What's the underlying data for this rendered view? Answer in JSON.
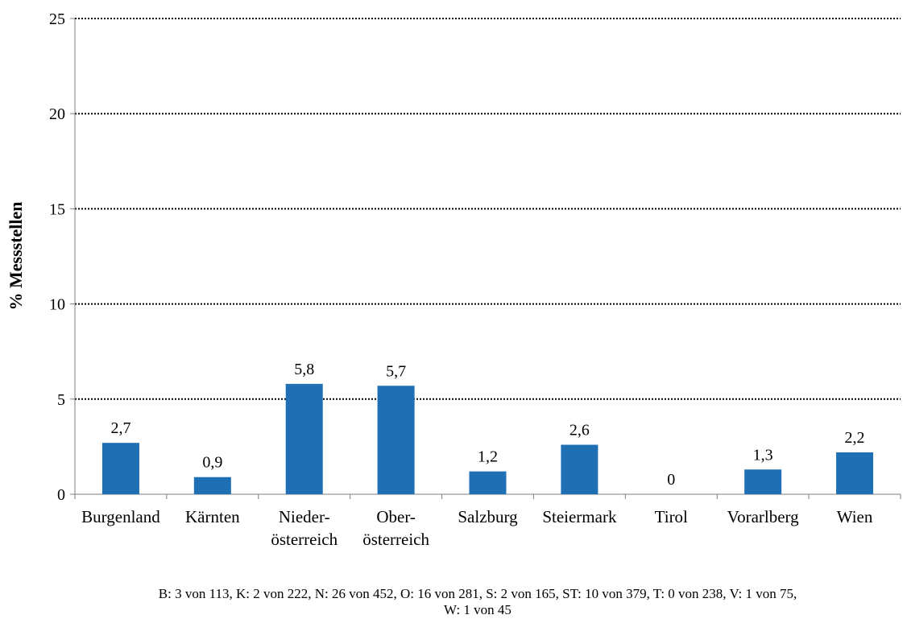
{
  "chart_data": {
    "type": "bar",
    "title": "",
    "xlabel": "",
    "ylabel": "% Messstellen",
    "ylim": [
      0,
      25
    ],
    "yticks": [
      0,
      5,
      10,
      15,
      20,
      25
    ],
    "grid": true,
    "grid_style": "dotted",
    "categories": [
      [
        "Burgenland"
      ],
      [
        "Kärnten"
      ],
      [
        "Nieder-",
        "österreich"
      ],
      [
        "Ober-",
        "österreich"
      ],
      [
        "Salzburg"
      ],
      [
        "Steiermark"
      ],
      [
        "Tirol"
      ],
      [
        "Vorarlberg"
      ],
      [
        "Wien"
      ]
    ],
    "values": [
      2.7,
      0.9,
      5.8,
      5.7,
      1.2,
      2.6,
      0,
      1.3,
      2.2
    ],
    "value_labels": [
      "2,7",
      "0,9",
      "5,8",
      "5,7",
      "1,2",
      "2,6",
      "0",
      "1,3",
      "2,2"
    ],
    "bar_color": "#1f6fb5",
    "footnote": [
      "B: 3 von 113, K: 2 von 222, N: 26 von 452, O: 16 von 281, S: 2 von 165, ST: 10 von 379, T: 0 von 238, V: 1 von 75,",
      "W: 1 von 45"
    ]
  }
}
